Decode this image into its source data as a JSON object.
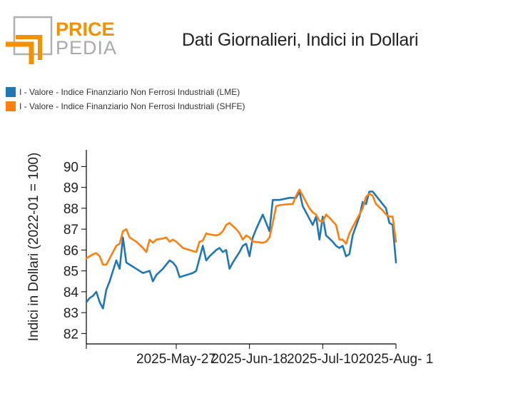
{
  "brand": {
    "price": "PRICE",
    "pedia": "PEDIA",
    "orange": "#f39200",
    "gray": "#aaaaaa"
  },
  "chart_data": {
    "type": "line",
    "title": "Dati Giornalieri, Indici in Dollari",
    "ylabel": "Indici in Dollari (2022-01 = 100)",
    "xlabel": "",
    "ylim": [
      81.5,
      90.8
    ],
    "yticks": [
      82,
      83,
      84,
      85,
      86,
      87,
      88,
      89,
      90
    ],
    "xlim": [
      "2025-04-30",
      "2025-08-01"
    ],
    "xticks": [
      {
        "date": "2025-05-27",
        "label": "2025-May-27"
      },
      {
        "date": "2025-06-18",
        "label": "2025-Jun-18"
      },
      {
        "date": "2025-07-10",
        "label": "2025-Jul-10"
      },
      {
        "date": "2025-08-01",
        "label": "2025-Aug- 1"
      }
    ],
    "legend_position": "top-left",
    "grid": false,
    "series": [
      {
        "name": "I - Valore - Indice Finanziario Non Ferrosi Industriali (LME)",
        "color": "#1f77b4",
        "points": [
          [
            "2025-04-30",
            83.5
          ],
          [
            "2025-05-01",
            83.7
          ],
          [
            "2025-05-02",
            83.8
          ],
          [
            "2025-05-03",
            84.0
          ],
          [
            "2025-05-04",
            83.5
          ],
          [
            "2025-05-05",
            83.2
          ],
          [
            "2025-05-06",
            84.1
          ],
          [
            "2025-05-07",
            84.5
          ],
          [
            "2025-05-08",
            85.0
          ],
          [
            "2025-05-09",
            85.5
          ],
          [
            "2025-05-10",
            85.1
          ],
          [
            "2025-05-11",
            86.6
          ],
          [
            "2025-05-12",
            85.4
          ],
          [
            "2025-05-13",
            85.3
          ],
          [
            "2025-05-15",
            85.1
          ],
          [
            "2025-05-17",
            84.9
          ],
          [
            "2025-05-19",
            85.0
          ],
          [
            "2025-05-20",
            84.5
          ],
          [
            "2025-05-21",
            84.8
          ],
          [
            "2025-05-23",
            85.1
          ],
          [
            "2025-05-25",
            85.5
          ],
          [
            "2025-05-26",
            85.4
          ],
          [
            "2025-05-27",
            85.2
          ],
          [
            "2025-05-28",
            84.7
          ],
          [
            "2025-05-30",
            84.8
          ],
          [
            "2025-06-01",
            84.9
          ],
          [
            "2025-06-02",
            85.0
          ],
          [
            "2025-06-04",
            86.2
          ],
          [
            "2025-06-05",
            85.5
          ],
          [
            "2025-06-06",
            85.7
          ],
          [
            "2025-06-08",
            86.0
          ],
          [
            "2025-06-09",
            86.1
          ],
          [
            "2025-06-10",
            85.9
          ],
          [
            "2025-06-11",
            86.0
          ],
          [
            "2025-06-12",
            85.1
          ],
          [
            "2025-06-13",
            85.4
          ],
          [
            "2025-06-15",
            85.9
          ],
          [
            "2025-06-16",
            86.2
          ],
          [
            "2025-06-17",
            86.3
          ],
          [
            "2025-06-18",
            85.7
          ],
          [
            "2025-06-19",
            86.6
          ],
          [
            "2025-06-20",
            87.0
          ],
          [
            "2025-06-22",
            87.7
          ],
          [
            "2025-06-23",
            87.3
          ],
          [
            "2025-06-24",
            86.9
          ],
          [
            "2025-06-25",
            88.4
          ],
          [
            "2025-06-26",
            88.4
          ],
          [
            "2025-06-27",
            88.4
          ],
          [
            "2025-06-30",
            88.5
          ],
          [
            "2025-07-01",
            88.5
          ],
          [
            "2025-07-02",
            88.5
          ],
          [
            "2025-07-03",
            88.8
          ],
          [
            "2025-07-04",
            88.1
          ],
          [
            "2025-07-05",
            87.8
          ],
          [
            "2025-07-07",
            87.2
          ],
          [
            "2025-07-08",
            87.6
          ],
          [
            "2025-07-09",
            86.5
          ],
          [
            "2025-07-10",
            87.6
          ],
          [
            "2025-07-11",
            86.7
          ],
          [
            "2025-07-13",
            86.4
          ],
          [
            "2025-07-14",
            86.2
          ],
          [
            "2025-07-15",
            86.1
          ],
          [
            "2025-07-16",
            86.2
          ],
          [
            "2025-07-17",
            85.7
          ],
          [
            "2025-07-18",
            85.8
          ],
          [
            "2025-07-19",
            86.7
          ],
          [
            "2025-07-21",
            87.6
          ],
          [
            "2025-07-22",
            88.3
          ],
          [
            "2025-07-23",
            88.2
          ],
          [
            "2025-07-24",
            88.8
          ],
          [
            "2025-07-25",
            88.8
          ],
          [
            "2025-07-26",
            88.6
          ],
          [
            "2025-07-27",
            88.4
          ],
          [
            "2025-07-29",
            88.0
          ],
          [
            "2025-07-30",
            87.3
          ],
          [
            "2025-07-31",
            87.2
          ],
          [
            "2025-08-01",
            85.4
          ]
        ]
      },
      {
        "name": "I - Valore - Indice Finanziario Non Ferrosi Industriali (SHFE)",
        "color": "#ff7f0e",
        "points": [
          [
            "2025-04-30",
            85.6
          ],
          [
            "2025-05-02",
            85.8
          ],
          [
            "2025-05-03",
            85.85
          ],
          [
            "2025-05-04",
            85.7
          ],
          [
            "2025-05-05",
            85.3
          ],
          [
            "2025-05-06",
            85.3
          ],
          [
            "2025-05-07",
            85.6
          ],
          [
            "2025-05-09",
            86.2
          ],
          [
            "2025-05-10",
            86.3
          ],
          [
            "2025-05-11",
            86.9
          ],
          [
            "2025-05-12",
            87.0
          ],
          [
            "2025-05-13",
            86.6
          ],
          [
            "2025-05-15",
            86.4
          ],
          [
            "2025-05-17",
            86.1
          ],
          [
            "2025-05-18",
            85.9
          ],
          [
            "2025-05-19",
            86.5
          ],
          [
            "2025-05-20",
            86.35
          ],
          [
            "2025-05-21",
            86.5
          ],
          [
            "2025-05-23",
            86.55
          ],
          [
            "2025-05-24",
            86.6
          ],
          [
            "2025-05-25",
            86.4
          ],
          [
            "2025-05-26",
            86.5
          ],
          [
            "2025-05-27",
            86.4
          ],
          [
            "2025-05-29",
            86.1
          ],
          [
            "2025-06-02",
            85.9
          ],
          [
            "2025-06-03",
            86.4
          ],
          [
            "2025-06-04",
            86.45
          ],
          [
            "2025-06-05",
            86.8
          ],
          [
            "2025-06-06",
            86.75
          ],
          [
            "2025-06-08",
            86.7
          ],
          [
            "2025-06-09",
            86.75
          ],
          [
            "2025-06-10",
            86.9
          ],
          [
            "2025-06-11",
            87.2
          ],
          [
            "2025-06-12",
            87.3
          ],
          [
            "2025-06-14",
            87.0
          ],
          [
            "2025-06-15",
            86.8
          ],
          [
            "2025-06-16",
            86.5
          ],
          [
            "2025-06-17",
            86.7
          ],
          [
            "2025-06-18",
            86.6
          ],
          [
            "2025-06-19",
            86.4
          ],
          [
            "2025-06-22",
            86.35
          ],
          [
            "2025-06-23",
            86.4
          ],
          [
            "2025-06-24",
            86.6
          ],
          [
            "2025-06-25",
            87.3
          ],
          [
            "2025-06-26",
            88.1
          ],
          [
            "2025-06-27",
            88.15
          ],
          [
            "2025-06-30",
            88.2
          ],
          [
            "2025-07-01",
            88.2
          ],
          [
            "2025-07-02",
            88.6
          ],
          [
            "2025-07-03",
            88.9
          ],
          [
            "2025-07-04",
            88.6
          ],
          [
            "2025-07-05",
            88.3
          ],
          [
            "2025-07-06",
            88.0
          ],
          [
            "2025-07-07",
            87.8
          ],
          [
            "2025-07-08",
            87.7
          ],
          [
            "2025-07-09",
            87.4
          ],
          [
            "2025-07-10",
            87.35
          ],
          [
            "2025-07-11",
            87.7
          ],
          [
            "2025-07-12",
            87.55
          ],
          [
            "2025-07-14",
            87.2
          ],
          [
            "2025-07-15",
            86.5
          ],
          [
            "2025-07-16",
            86.5
          ],
          [
            "2025-07-17",
            86.3
          ],
          [
            "2025-07-18",
            86.8
          ],
          [
            "2025-07-20",
            87.4
          ],
          [
            "2025-07-22",
            88.0
          ],
          [
            "2025-07-23",
            88.55
          ],
          [
            "2025-07-24",
            88.7
          ],
          [
            "2025-07-25",
            88.6
          ],
          [
            "2025-07-26",
            88.2
          ],
          [
            "2025-07-28",
            87.9
          ],
          [
            "2025-07-29",
            87.7
          ],
          [
            "2025-07-30",
            87.6
          ],
          [
            "2025-07-31",
            87.6
          ],
          [
            "2025-08-01",
            86.4
          ]
        ]
      }
    ]
  }
}
